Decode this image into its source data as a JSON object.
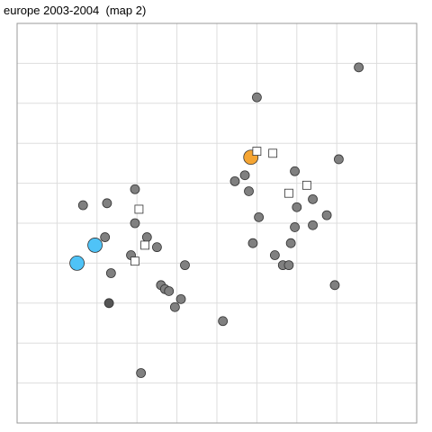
{
  "chart_data": {
    "type": "scatter",
    "title": "europe 2003-2004  (map 2)",
    "xlabel": "",
    "ylabel": "",
    "xlim": [
      0,
      10
    ],
    "ylim": [
      0,
      10
    ],
    "grid": true,
    "x_ticks": [
      1,
      2,
      3,
      4,
      5,
      6,
      7,
      8,
      9
    ],
    "y_ticks": [
      1,
      2,
      3,
      4,
      5,
      6,
      7,
      8,
      9
    ],
    "colors": {
      "grey": "#808080",
      "dark": "#555555",
      "blue": "#4fc3f7",
      "orange": "#f5a533",
      "square": "#ffffff",
      "outline": "#333333",
      "grid": "#dddddd",
      "frame": "#999999"
    },
    "series": [
      {
        "marker": "circle",
        "color": "grey",
        "points": [
          [
            8.55,
            8.9
          ],
          [
            6.0,
            8.15
          ],
          [
            8.05,
            6.6
          ],
          [
            6.95,
            6.3
          ],
          [
            5.7,
            6.2
          ],
          [
            5.45,
            6.05
          ],
          [
            5.8,
            5.8
          ],
          [
            7.4,
            5.6
          ],
          [
            7.0,
            5.4
          ],
          [
            7.75,
            5.2
          ],
          [
            6.05,
            5.15
          ],
          [
            7.4,
            4.95
          ],
          [
            6.95,
            4.9
          ],
          [
            6.85,
            4.5
          ],
          [
            5.9,
            4.5
          ],
          [
            6.45,
            4.2
          ],
          [
            6.65,
            3.95
          ],
          [
            6.8,
            3.95
          ],
          [
            7.95,
            3.45
          ],
          [
            5.15,
            2.55
          ],
          [
            1.65,
            5.45
          ],
          [
            2.25,
            5.5
          ],
          [
            2.95,
            5.85
          ],
          [
            2.95,
            5.0
          ],
          [
            2.2,
            4.65
          ],
          [
            3.25,
            4.65
          ],
          [
            3.5,
            4.4
          ],
          [
            2.85,
            4.2
          ],
          [
            4.2,
            3.95
          ],
          [
            2.35,
            3.75
          ],
          [
            3.6,
            3.45
          ],
          [
            3.7,
            3.35
          ],
          [
            3.8,
            3.3
          ],
          [
            4.1,
            3.1
          ],
          [
            3.95,
            2.9
          ],
          [
            3.1,
            1.25
          ]
        ]
      },
      {
        "marker": "circle",
        "color": "dark",
        "points": [
          [
            2.3,
            3.0
          ]
        ]
      },
      {
        "marker": "circle-large",
        "color": "blue",
        "points": [
          [
            1.95,
            4.45
          ],
          [
            1.5,
            4.0
          ]
        ]
      },
      {
        "marker": "circle-large",
        "color": "orange",
        "points": [
          [
            5.85,
            6.65
          ]
        ]
      },
      {
        "marker": "square",
        "color": "square",
        "points": [
          [
            6.0,
            6.8
          ],
          [
            6.4,
            6.75
          ],
          [
            7.25,
            5.95
          ],
          [
            6.8,
            5.75
          ],
          [
            3.05,
            5.35
          ],
          [
            3.2,
            4.45
          ],
          [
            2.95,
            4.05
          ]
        ]
      }
    ]
  }
}
